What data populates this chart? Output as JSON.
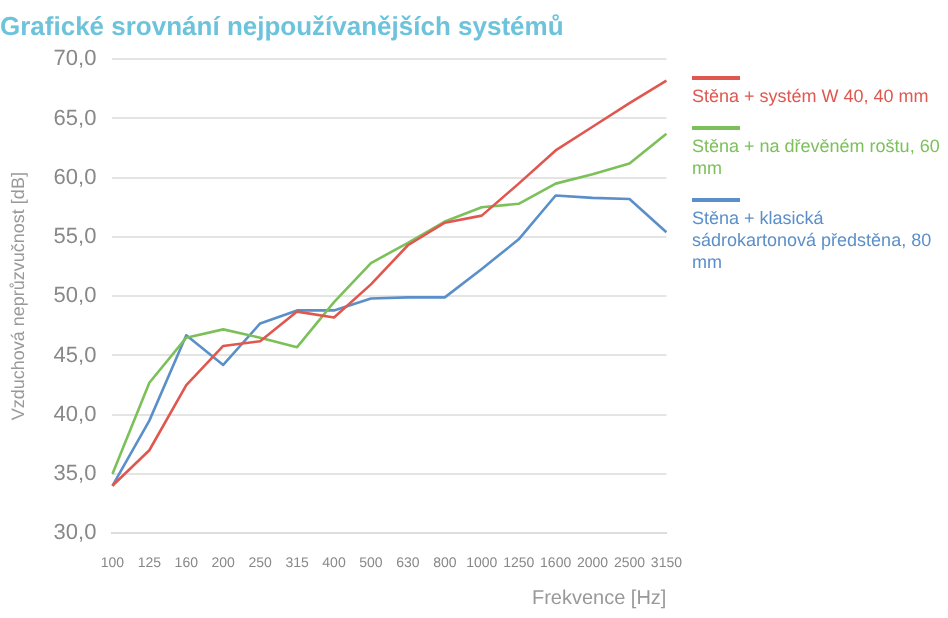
{
  "chart_data": {
    "type": "line",
    "title": "Grafické srovnání nejpoužívanějších systémů",
    "xlabel": "Frekvence [Hz]",
    "ylabel": "Vzduchová neprůzvučnost [dB]",
    "categories": [
      "100",
      "125",
      "160",
      "200",
      "250",
      "315",
      "400",
      "500",
      "630",
      "800",
      "1000",
      "1250",
      "1600",
      "2000",
      "2500",
      "3150"
    ],
    "series": [
      {
        "name": "Stěna + systém W 40, 40 mm",
        "color": "#e0574f",
        "values": [
          34.0,
          37.0,
          42.5,
          45.8,
          46.2,
          48.7,
          48.2,
          51.0,
          54.3,
          56.2,
          56.8,
          59.5,
          62.3,
          64.3,
          66.3,
          68.2
        ]
      },
      {
        "name": "Stěna + na dřevěném roštu, 60 mm",
        "color": "#7cc05a",
        "values": [
          35.0,
          42.7,
          46.5,
          47.2,
          46.5,
          45.7,
          49.5,
          52.8,
          54.5,
          56.3,
          57.5,
          57.8,
          59.5,
          60.3,
          61.2,
          63.7
        ]
      },
      {
        "name": "Stěna + klasická sádrokartonová předstěna, 80 mm",
        "color": "#5b8fc9",
        "values": [
          34.0,
          39.5,
          46.7,
          44.2,
          47.7,
          48.8,
          48.8,
          49.8,
          49.9,
          49.9,
          52.3,
          54.8,
          58.5,
          58.3,
          58.2,
          55.4
        ]
      }
    ],
    "ylim": [
      30,
      70
    ],
    "yticks": [
      {
        "value": 30,
        "label": "30,0"
      },
      {
        "value": 35,
        "label": "35,0"
      },
      {
        "value": 40,
        "label": "40,0"
      },
      {
        "value": 45,
        "label": "45,0"
      },
      {
        "value": 50,
        "label": "50,0"
      },
      {
        "value": 55,
        "label": "55,0"
      },
      {
        "value": 60,
        "label": "60,0"
      },
      {
        "value": 65,
        "label": "65,0"
      },
      {
        "value": 70,
        "label": "70,0"
      }
    ],
    "grid": "y",
    "legend": "right",
    "marker": "none",
    "line_style": "solid"
  }
}
